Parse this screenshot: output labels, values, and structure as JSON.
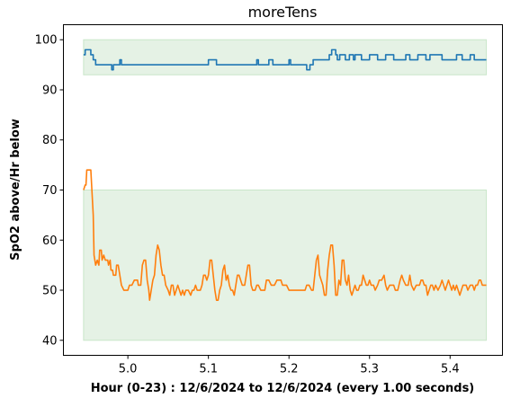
{
  "chart_data": {
    "type": "line",
    "title": "moreTens",
    "xlabel": "Hour (0-23) : 12/6/2024 to 12/6/2024 (every 1.00 seconds)",
    "ylabel": "SpO2 above/Hr below",
    "xlim": [
      4.92,
      5.465
    ],
    "ylim": [
      37,
      103
    ],
    "x_ticks": [
      5.0,
      5.1,
      5.2,
      5.3,
      5.4
    ],
    "x_tick_labels": [
      "5.0",
      "5.1",
      "5.2",
      "5.3",
      "5.4"
    ],
    "y_ticks": [
      40,
      50,
      60,
      70,
      80,
      90,
      100
    ],
    "y_tick_labels": [
      "40",
      "50",
      "60",
      "70",
      "80",
      "90",
      "100"
    ],
    "grid": false,
    "bands": [
      {
        "name": "spo2-normal-band",
        "x": [
          4.945,
          5.445
        ],
        "y": [
          93,
          100
        ],
        "color": "#e5f2e5"
      },
      {
        "name": "hr-band",
        "x": [
          4.945,
          5.445
        ],
        "y": [
          40,
          70
        ],
        "color": "#e5f2e5"
      }
    ],
    "series": [
      {
        "color": "#1f77b4",
        "points": [
          [
            4.945,
            97
          ],
          [
            4.947,
            97
          ],
          [
            4.947,
            98
          ],
          [
            4.954,
            98
          ],
          [
            4.954,
            97
          ],
          [
            4.957,
            97
          ],
          [
            4.957,
            96
          ],
          [
            4.96,
            96
          ],
          [
            4.96,
            95
          ],
          [
            4.98,
            95
          ],
          [
            4.98,
            94
          ],
          [
            4.982,
            94
          ],
          [
            4.982,
            95
          ],
          [
            4.99,
            95
          ],
          [
            4.99,
            96
          ],
          [
            4.992,
            96
          ],
          [
            4.992,
            95
          ],
          [
            5.1,
            95
          ],
          [
            5.1,
            96
          ],
          [
            5.11,
            96
          ],
          [
            5.11,
            95
          ],
          [
            5.16,
            95
          ],
          [
            5.16,
            96
          ],
          [
            5.162,
            96
          ],
          [
            5.162,
            95
          ],
          [
            5.175,
            95
          ],
          [
            5.175,
            96
          ],
          [
            5.18,
            96
          ],
          [
            5.18,
            95
          ],
          [
            5.2,
            95
          ],
          [
            5.2,
            96
          ],
          [
            5.202,
            96
          ],
          [
            5.202,
            95
          ],
          [
            5.222,
            95
          ],
          [
            5.222,
            94
          ],
          [
            5.226,
            94
          ],
          [
            5.226,
            95
          ],
          [
            5.23,
            95
          ],
          [
            5.23,
            96
          ],
          [
            5.25,
            96
          ],
          [
            5.25,
            97
          ],
          [
            5.253,
            97
          ],
          [
            5.253,
            98
          ],
          [
            5.258,
            98
          ],
          [
            5.258,
            97
          ],
          [
            5.26,
            97
          ],
          [
            5.26,
            96
          ],
          [
            5.263,
            96
          ],
          [
            5.263,
            97
          ],
          [
            5.27,
            97
          ],
          [
            5.27,
            96
          ],
          [
            5.275,
            96
          ],
          [
            5.275,
            97
          ],
          [
            5.28,
            97
          ],
          [
            5.28,
            96
          ],
          [
            5.282,
            96
          ],
          [
            5.282,
            97
          ],
          [
            5.29,
            97
          ],
          [
            5.29,
            96
          ],
          [
            5.3,
            96
          ],
          [
            5.3,
            97
          ],
          [
            5.31,
            97
          ],
          [
            5.31,
            96
          ],
          [
            5.32,
            96
          ],
          [
            5.32,
            97
          ],
          [
            5.33,
            97
          ],
          [
            5.33,
            96
          ],
          [
            5.345,
            96
          ],
          [
            5.345,
            97
          ],
          [
            5.35,
            97
          ],
          [
            5.35,
            96
          ],
          [
            5.36,
            96
          ],
          [
            5.36,
            97
          ],
          [
            5.37,
            97
          ],
          [
            5.37,
            96
          ],
          [
            5.375,
            96
          ],
          [
            5.375,
            97
          ],
          [
            5.39,
            97
          ],
          [
            5.39,
            96
          ],
          [
            5.408,
            96
          ],
          [
            5.408,
            97
          ],
          [
            5.415,
            97
          ],
          [
            5.415,
            96
          ],
          [
            5.425,
            96
          ],
          [
            5.425,
            97
          ],
          [
            5.43,
            97
          ],
          [
            5.43,
            96
          ],
          [
            5.445,
            96
          ]
        ]
      },
      {
        "color": "#ff7f0e",
        "points": [
          [
            4.945,
            70
          ],
          [
            4.947,
            71
          ],
          [
            4.948,
            71
          ],
          [
            4.949,
            74
          ],
          [
            4.954,
            74
          ],
          [
            4.957,
            65
          ],
          [
            4.958,
            57
          ],
          [
            4.96,
            55
          ],
          [
            4.962,
            56
          ],
          [
            4.964,
            55
          ],
          [
            4.965,
            58
          ],
          [
            4.967,
            58
          ],
          [
            4.968,
            56
          ],
          [
            4.97,
            57
          ],
          [
            4.972,
            56
          ],
          [
            4.975,
            56
          ],
          [
            4.976,
            55
          ],
          [
            4.978,
            56
          ],
          [
            4.979,
            54
          ],
          [
            4.981,
            54
          ],
          [
            4.982,
            53
          ],
          [
            4.985,
            53
          ],
          [
            4.986,
            55
          ],
          [
            4.988,
            55
          ],
          [
            4.99,
            53
          ],
          [
            4.992,
            51
          ],
          [
            4.995,
            50
          ],
          [
            5.0,
            50
          ],
          [
            5.002,
            51
          ],
          [
            5.005,
            51
          ],
          [
            5.008,
            52
          ],
          [
            5.012,
            52
          ],
          [
            5.013,
            51
          ],
          [
            5.016,
            51
          ],
          [
            5.018,
            55
          ],
          [
            5.02,
            56
          ],
          [
            5.022,
            56
          ],
          [
            5.024,
            52
          ],
          [
            5.026,
            50
          ],
          [
            5.027,
            48
          ],
          [
            5.029,
            50
          ],
          [
            5.031,
            52
          ],
          [
            5.033,
            53
          ],
          [
            5.035,
            57
          ],
          [
            5.037,
            59
          ],
          [
            5.039,
            58
          ],
          [
            5.041,
            55
          ],
          [
            5.043,
            53
          ],
          [
            5.045,
            53
          ],
          [
            5.047,
            51
          ],
          [
            5.05,
            50
          ],
          [
            5.052,
            49
          ],
          [
            5.054,
            51
          ],
          [
            5.056,
            51
          ],
          [
            5.058,
            49
          ],
          [
            5.06,
            50
          ],
          [
            5.062,
            51
          ],
          [
            5.064,
            50
          ],
          [
            5.066,
            49
          ],
          [
            5.068,
            50
          ],
          [
            5.07,
            49
          ],
          [
            5.072,
            50
          ],
          [
            5.075,
            50
          ],
          [
            5.078,
            49
          ],
          [
            5.08,
            50
          ],
          [
            5.082,
            50
          ],
          [
            5.084,
            51
          ],
          [
            5.086,
            50
          ],
          [
            5.09,
            50
          ],
          [
            5.092,
            51
          ],
          [
            5.094,
            53
          ],
          [
            5.096,
            53
          ],
          [
            5.098,
            52
          ],
          [
            5.1,
            53
          ],
          [
            5.102,
            56
          ],
          [
            5.104,
            56
          ],
          [
            5.106,
            53
          ],
          [
            5.108,
            50
          ],
          [
            5.11,
            48
          ],
          [
            5.112,
            48
          ],
          [
            5.114,
            50
          ],
          [
            5.116,
            51
          ],
          [
            5.118,
            54
          ],
          [
            5.12,
            55
          ],
          [
            5.122,
            52
          ],
          [
            5.124,
            53
          ],
          [
            5.126,
            51
          ],
          [
            5.128,
            50
          ],
          [
            5.13,
            50
          ],
          [
            5.132,
            49
          ],
          [
            5.134,
            51
          ],
          [
            5.136,
            53
          ],
          [
            5.138,
            53
          ],
          [
            5.14,
            52
          ],
          [
            5.142,
            51
          ],
          [
            5.145,
            51
          ],
          [
            5.147,
            53
          ],
          [
            5.149,
            55
          ],
          [
            5.151,
            55
          ],
          [
            5.153,
            51
          ],
          [
            5.155,
            50
          ],
          [
            5.158,
            50
          ],
          [
            5.16,
            51
          ],
          [
            5.162,
            51
          ],
          [
            5.165,
            50
          ],
          [
            5.17,
            50
          ],
          [
            5.172,
            52
          ],
          [
            5.175,
            52
          ],
          [
            5.178,
            51
          ],
          [
            5.182,
            51
          ],
          [
            5.185,
            52
          ],
          [
            5.19,
            52
          ],
          [
            5.192,
            51
          ],
          [
            5.197,
            51
          ],
          [
            5.2,
            50
          ],
          [
            5.205,
            50
          ],
          [
            5.21,
            50
          ],
          [
            5.215,
            50
          ],
          [
            5.22,
            50
          ],
          [
            5.222,
            51
          ],
          [
            5.225,
            51
          ],
          [
            5.228,
            50
          ],
          [
            5.23,
            50
          ],
          [
            5.232,
            53
          ],
          [
            5.234,
            56
          ],
          [
            5.236,
            57
          ],
          [
            5.238,
            53
          ],
          [
            5.24,
            52
          ],
          [
            5.242,
            51
          ],
          [
            5.244,
            49
          ],
          [
            5.246,
            49
          ],
          [
            5.248,
            54
          ],
          [
            5.25,
            57
          ],
          [
            5.252,
            59
          ],
          [
            5.254,
            59
          ],
          [
            5.256,
            55
          ],
          [
            5.258,
            49
          ],
          [
            5.26,
            49
          ],
          [
            5.262,
            52
          ],
          [
            5.264,
            51
          ],
          [
            5.266,
            56
          ],
          [
            5.268,
            56
          ],
          [
            5.27,
            52
          ],
          [
            5.272,
            51
          ],
          [
            5.274,
            53
          ],
          [
            5.276,
            50
          ],
          [
            5.278,
            49
          ],
          [
            5.28,
            50
          ],
          [
            5.282,
            51
          ],
          [
            5.284,
            50
          ],
          [
            5.286,
            50
          ],
          [
            5.288,
            51
          ],
          [
            5.29,
            51
          ],
          [
            5.292,
            53
          ],
          [
            5.294,
            52
          ],
          [
            5.296,
            51
          ],
          [
            5.298,
            51
          ],
          [
            5.3,
            52
          ],
          [
            5.302,
            51
          ],
          [
            5.305,
            51
          ],
          [
            5.307,
            50
          ],
          [
            5.31,
            51
          ],
          [
            5.312,
            52
          ],
          [
            5.315,
            52
          ],
          [
            5.318,
            53
          ],
          [
            5.32,
            51
          ],
          [
            5.322,
            50
          ],
          [
            5.325,
            51
          ],
          [
            5.33,
            51
          ],
          [
            5.332,
            50
          ],
          [
            5.335,
            50
          ],
          [
            5.338,
            52
          ],
          [
            5.34,
            53
          ],
          [
            5.342,
            52
          ],
          [
            5.345,
            51
          ],
          [
            5.348,
            51
          ],
          [
            5.35,
            53
          ],
          [
            5.352,
            51
          ],
          [
            5.355,
            50
          ],
          [
            5.358,
            51
          ],
          [
            5.362,
            51
          ],
          [
            5.364,
            52
          ],
          [
            5.366,
            52
          ],
          [
            5.368,
            51
          ],
          [
            5.37,
            51
          ],
          [
            5.372,
            49
          ],
          [
            5.374,
            50
          ],
          [
            5.376,
            51
          ],
          [
            5.378,
            51
          ],
          [
            5.38,
            50
          ],
          [
            5.382,
            51
          ],
          [
            5.385,
            50
          ],
          [
            5.388,
            51
          ],
          [
            5.39,
            52
          ],
          [
            5.392,
            51
          ],
          [
            5.394,
            50
          ],
          [
            5.396,
            51
          ],
          [
            5.398,
            52
          ],
          [
            5.4,
            51
          ],
          [
            5.402,
            50
          ],
          [
            5.404,
            51
          ],
          [
            5.406,
            50
          ],
          [
            5.408,
            51
          ],
          [
            5.41,
            50
          ],
          [
            5.412,
            49
          ],
          [
            5.414,
            50
          ],
          [
            5.416,
            51
          ],
          [
            5.42,
            51
          ],
          [
            5.422,
            50
          ],
          [
            5.425,
            51
          ],
          [
            5.428,
            51
          ],
          [
            5.43,
            50
          ],
          [
            5.432,
            51
          ],
          [
            5.434,
            51
          ],
          [
            5.436,
            52
          ],
          [
            5.438,
            52
          ],
          [
            5.44,
            51
          ],
          [
            5.445,
            51
          ]
        ]
      }
    ]
  }
}
